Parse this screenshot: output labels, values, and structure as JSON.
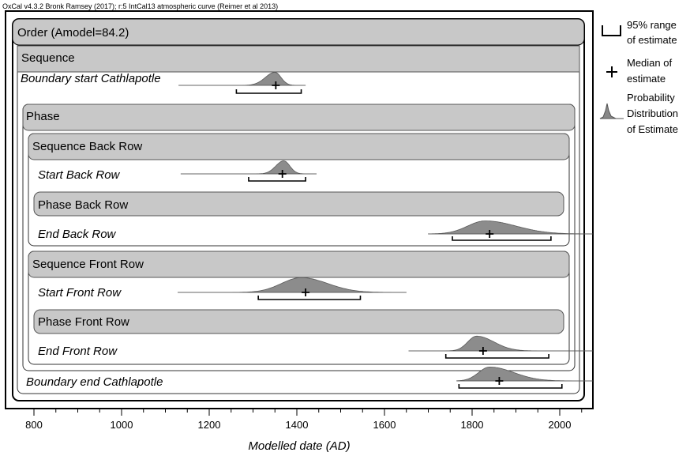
{
  "header": "OxCal v4.3.2 Bronk Ramsey (2017); r:5 IntCal13 atmospheric curve (Reimer et al 2013)",
  "legend": {
    "range": [
      "95% range",
      "of estimate"
    ],
    "median": [
      "Median of",
      "estimate"
    ],
    "distribution": [
      "Probability",
      "Distribution",
      "of Estimate"
    ]
  },
  "chart_data": {
    "type": "range-plot",
    "xlabel": "Modelled date (AD)",
    "xlim": [
      750,
      2075
    ],
    "xticks": [
      800,
      1000,
      1200,
      1400,
      1600,
      1800,
      2000
    ],
    "headers": [
      {
        "id": "order",
        "label": "Order (Amodel=84.2)"
      },
      {
        "id": "sequence",
        "label": "Sequence"
      },
      {
        "id": "phase",
        "label": "Phase"
      },
      {
        "id": "sequence-back-row",
        "label": "Sequence Back Row"
      },
      {
        "id": "phase-back-row",
        "label": "Phase Back Row"
      },
      {
        "id": "sequence-front-row",
        "label": "Sequence Front Row"
      },
      {
        "id": "phase-front-row",
        "label": "Phase Front Row"
      }
    ],
    "series": [
      {
        "name": "Boundary start Cathlapotle",
        "median": 1352,
        "range95": [
          1262,
          1410
        ],
        "peak": 1350,
        "sd_left": 22,
        "sd_right": 14,
        "extent": [
          1130,
          1420
        ],
        "amp": 0.75
      },
      {
        "name": "Start Back Row",
        "median": 1367,
        "range95": [
          1290,
          1420
        ],
        "peak": 1370,
        "sd_left": 18,
        "sd_right": 14,
        "extent": [
          1135,
          1445
        ],
        "amp": 0.75
      },
      {
        "name": "End Back Row",
        "median": 1840,
        "range95": [
          1755,
          1980
        ],
        "peak": 1830,
        "sd_left": 40,
        "sd_right": 70,
        "extent": [
          1700,
          2075
        ],
        "amp": 0.75
      },
      {
        "name": "Start Front Row",
        "median": 1420,
        "range95": [
          1312,
          1545
        ],
        "peak": 1410,
        "sd_left": 45,
        "sd_right": 60,
        "extent": [
          1128,
          1650
        ],
        "amp": 0.85
      },
      {
        "name": "End Front Row",
        "median": 1825,
        "range95": [
          1740,
          1975
        ],
        "peak": 1810,
        "sd_left": 20,
        "sd_right": 40,
        "extent": [
          1655,
          2075
        ],
        "amp": 0.85
      },
      {
        "name": "Boundary end Cathlapotle",
        "median": 1862,
        "range95": [
          1770,
          2005
        ],
        "peak": 1840,
        "sd_left": 25,
        "sd_right": 55,
        "extent": [
          1765,
          2075
        ],
        "amp": 0.8
      }
    ]
  }
}
